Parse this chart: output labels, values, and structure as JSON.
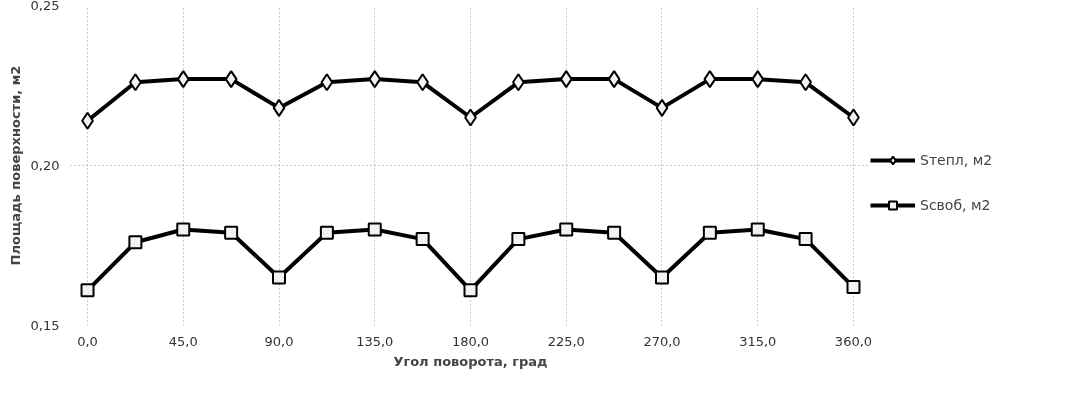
{
  "chart_data": {
    "type": "line",
    "xlabel": "Угол поворота, град",
    "ylabel": "Площадь поверхности, м2",
    "x": [
      0,
      22.5,
      45,
      67.5,
      90,
      112.5,
      135,
      157.5,
      180,
      202.5,
      225,
      247.5,
      270,
      292.5,
      315,
      337.5,
      360
    ],
    "series": [
      {
        "name": "Sтепл, м2",
        "color": "#000000",
        "marker": "diamond",
        "values": [
          0.214,
          0.226,
          0.227,
          0.227,
          0.218,
          0.226,
          0.227,
          0.226,
          0.215,
          0.226,
          0.227,
          0.227,
          0.218,
          0.227,
          0.227,
          0.226,
          0.215
        ]
      },
      {
        "name": "Sсвоб, м2",
        "color": "#000000",
        "marker": "square",
        "values": [
          0.161,
          0.176,
          0.18,
          0.179,
          0.165,
          0.179,
          0.18,
          0.177,
          0.161,
          0.177,
          0.18,
          0.179,
          0.165,
          0.179,
          0.18,
          0.177,
          0.162
        ]
      }
    ],
    "xlim": [
      -8,
      368
    ],
    "ylim": [
      0.15,
      0.25
    ],
    "xticks": [
      {
        "value": 0,
        "label": "0,0"
      },
      {
        "value": 45,
        "label": "45,0"
      },
      {
        "value": 90,
        "label": "90,0"
      },
      {
        "value": 135,
        "label": "135,0"
      },
      {
        "value": 180,
        "label": "180,0"
      },
      {
        "value": 225,
        "label": "225,0"
      },
      {
        "value": 270,
        "label": "270,0"
      },
      {
        "value": 315,
        "label": "315,0"
      },
      {
        "value": 360,
        "label": "360,0"
      }
    ],
    "yticks": [
      {
        "value": 0.15,
        "label": "0,15"
      },
      {
        "value": 0.2,
        "label": "0,20"
      },
      {
        "value": 0.25,
        "label": "0,25"
      }
    ],
    "grid": true,
    "legend": "right",
    "line_style": "solid"
  }
}
